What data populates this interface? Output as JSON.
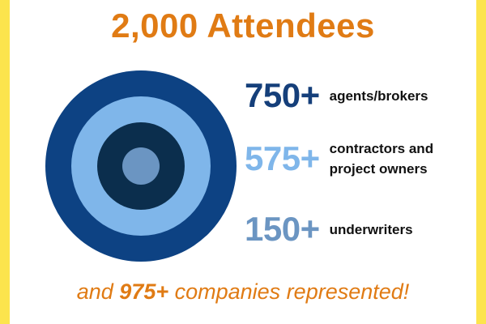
{
  "title": "2,000 Attendees",
  "stats": [
    {
      "value": "750+",
      "label_lines": [
        "agents/brokers"
      ],
      "color": "#153f7a"
    },
    {
      "value": "575+",
      "label_lines": [
        "contractors and",
        "project owners"
      ],
      "color": "#7fb6ea"
    },
    {
      "value": "150+",
      "label_lines": [
        "underwriters"
      ],
      "color": "#6b95c2"
    }
  ],
  "footer": {
    "prefix": "and ",
    "number": "975+",
    "suffix": " companies represented!"
  },
  "colors": {
    "accent_orange": "#e07b14",
    "frame_yellow": "#fce44d",
    "ring_outer": "#0d4283",
    "ring_light": "#7fb6ea",
    "ring_dark": "#0b2e4d",
    "ring_center": "#6b95c2"
  }
}
